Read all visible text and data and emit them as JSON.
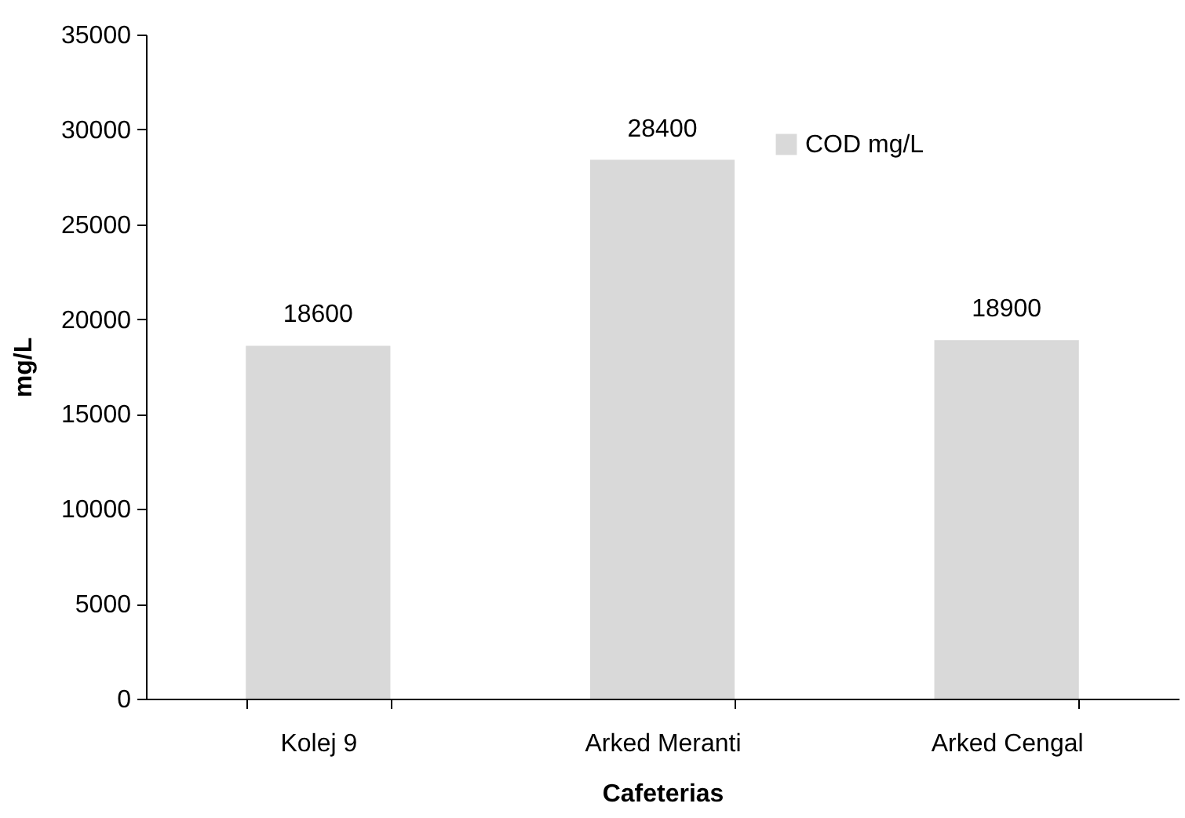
{
  "chart_data": {
    "type": "bar",
    "xlabel": "Cafeterias",
    "ylabel": "mg/L",
    "categories": [
      "Kolej 9",
      "Arked Meranti",
      "Arked Cengal"
    ],
    "series": [
      {
        "name": "COD mg/L",
        "color": "#d9d9d9",
        "values": [
          18600,
          28400,
          18900
        ]
      }
    ],
    "ylim": [
      0,
      35000
    ],
    "yticks": [
      0,
      5000,
      10000,
      15000,
      20000,
      25000,
      30000,
      35000
    ],
    "grid": false,
    "legend": "top right",
    "data_labels": true
  }
}
